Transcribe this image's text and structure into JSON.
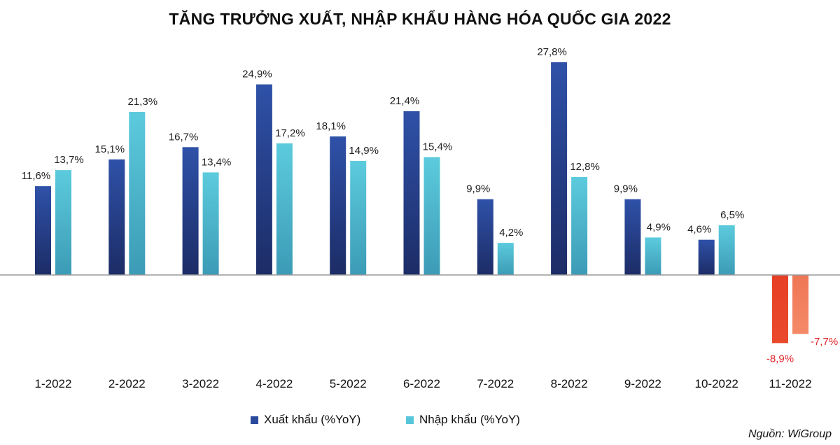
{
  "chart_data": {
    "type": "bar",
    "title": "TĂNG TRƯỞNG XUẤT, NHẬP KHẨU HÀNG HÓA QUỐC GIA 2022",
    "categories": [
      "1-2022",
      "2-2022",
      "3-2022",
      "4-2022",
      "5-2022",
      "6-2022",
      "7-2022",
      "8-2022",
      "9-2022",
      "10-2022",
      "11-2022"
    ],
    "series": [
      {
        "name": "Xuất khẩu (%YoY)",
        "values": [
          11.6,
          15.1,
          16.7,
          24.9,
          18.1,
          21.4,
          9.9,
          27.8,
          9.9,
          4.6,
          -8.9
        ],
        "labels": [
          "11,6%",
          "15,1%",
          "16,7%",
          "24,9%",
          "18,1%",
          "21,4%",
          "9,9%",
          "27,8%",
          "9,9%",
          "4,6%",
          "-8,9%"
        ],
        "color": "#2b4a9e",
        "negative_color": "#e8452a"
      },
      {
        "name": "Nhập khẩu (%YoY)",
        "values": [
          13.7,
          21.3,
          13.4,
          17.2,
          14.9,
          15.4,
          4.2,
          12.8,
          4.9,
          6.5,
          -7.7
        ],
        "labels": [
          "13,7%",
          "21,3%",
          "13,4%",
          "17,2%",
          "14,9%",
          "15,4%",
          "4,2%",
          "12,8%",
          "4,9%",
          "6,5%",
          "-7,7%"
        ],
        "color": "#58c6da",
        "negative_color": "#f07f5e"
      }
    ],
    "xlabel": "",
    "ylabel": "",
    "ylim": [
      -10,
      30
    ],
    "grid": false,
    "legend": "bottom",
    "source": "Nguồn: WiGroup"
  }
}
